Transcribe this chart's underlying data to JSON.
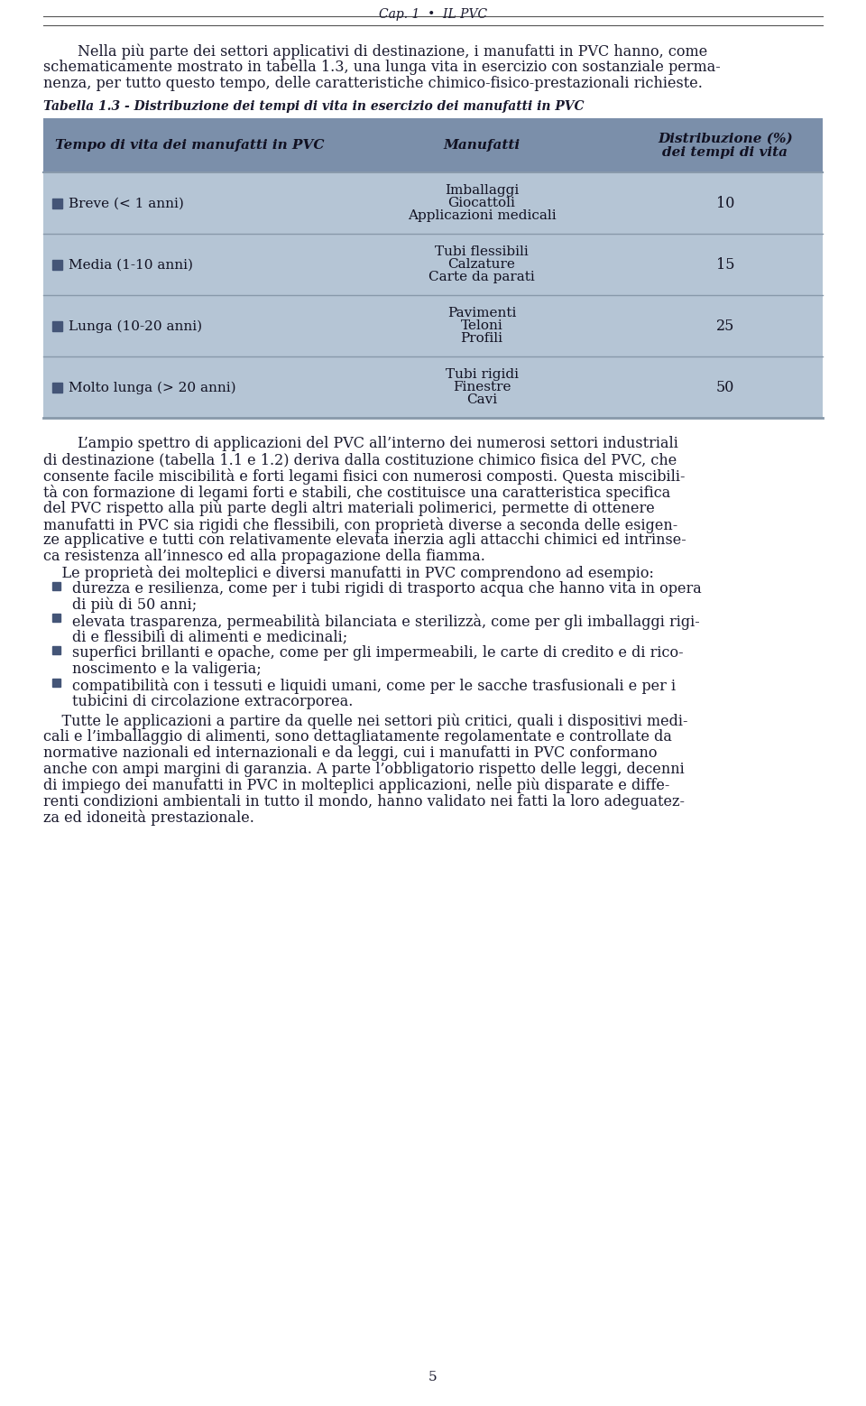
{
  "page_bg": "#ffffff",
  "header_text": "Cap. 1  •  IL PVC",
  "para1_lines": [
    "Nella più parte dei settori applicativi di destinazione, i manufatti in PVC hanno, come",
    "schematicamente mostrato in tabella 1.3, una lunga vita in esercizio con sostanziale perma-",
    "nenza, per tutto questo tempo, delle caratteristiche chimico-fisico-prestazionali richieste."
  ],
  "table_title": "Tabella 1.3 - Distribuzione dei tempi di vita in esercizio dei manufatti in PVC",
  "table_header_bg": "#7b8faa",
  "table_row_bg": "#b5c5d5",
  "table_border_color": "#8899aa",
  "col1_header": "Tempo di vita dei manufatti in PVC",
  "col2_header": "Manufatti",
  "col3_header_line1": "Distribuzione (%)",
  "col3_header_line2": "dei tempi di vita",
  "rows": [
    {
      "col1": "Breve (< 1 anni)",
      "col2_lines": [
        "Imballaggi",
        "Giocattoli",
        "Applicazioni medicali"
      ],
      "col3": "10",
      "sq_color": "#445577"
    },
    {
      "col1": "Media (1-10 anni)",
      "col2_lines": [
        "Tubi flessibili",
        "Calzature",
        "Carte da parati"
      ],
      "col3": "15",
      "sq_color": "#445577"
    },
    {
      "col1": "Lunga (10-20 anni)",
      "col2_lines": [
        "Pavimenti",
        "Teloni",
        "Profili"
      ],
      "col3": "25",
      "sq_color": "#445577"
    },
    {
      "col1": "Molto lunga (> 20 anni)",
      "col2_lines": [
        "Tubi rigidi",
        "Finestre",
        "Cavi"
      ],
      "col3": "50",
      "sq_color": "#445577"
    }
  ],
  "para2_lines": [
    "L’ampio spettro di applicazioni del PVC all’interno dei numerosi settori industriali",
    "di destinazione (tabella 1.1 e 1.2) deriva dalla costituzione chimico fisica del PVC, che",
    "consente facile miscibilità e forti legami fisici con numerosi composti. Questa miscibili-",
    "tà con formazione di legami forti e stabili, che costituisce una caratteristica specifica",
    "del PVC rispetto alla più parte degli altri materiali polimerici, permette di ottenere",
    "manufatti in PVC sia rigidi che flessibili, con proprietà diverse a seconda delle esigen-",
    "ze applicative e tutti con relativamente elevata inerzia agli attacchi chimici ed intrinse-",
    "ca resistenza all’innesco ed alla propagazione della fiamma."
  ],
  "para3_intro": "    Le proprietà dei molteplici e diversi manufatti in PVC comprendono ad esempio:",
  "bullet_color": "#445577",
  "bullet_lines": [
    [
      "durezza e resilienza, come per i tubi rigidi di trasporto acqua che hanno vita in opera",
      "di più di 50 anni;"
    ],
    [
      "elevata trasparenza, permeabilità bilanciata e sterilizzà, come per gli imballaggi rigi-",
      "di e flessibili di alimenti e medicinali;"
    ],
    [
      "superfici brillanti e opache, come per gli impermeabili, le carte di credito e di rico-",
      "noscimento e la valigeria;"
    ],
    [
      "compatibilità con i tessuti e liquidi umani, come per le sacche trasfusionali e per i",
      "tubicini di circolazione extracorporea."
    ]
  ],
  "para4_lines": [
    "    Tutte le applicazioni a partire da quelle nei settori più critici, quali i dispositivi medi-",
    "cali e l’imballaggio di alimenti, sono dettagliatamente regolamentate e controllate da",
    "normative nazionali ed internazionali e da leggi, cui i manufatti in PVC conformano",
    "anche con ampi margini di garanzia. A parte l’obbligatorio rispetto delle leggi, decenni",
    "di impiego dei manufatti in PVC in molteplici applicazioni, nelle più disparate e diffe-",
    "renti condizioni ambientali in tutto il mondo, hanno validato nei fatti la loro adeguatez-",
    "za ed idoneità prestazionale."
  ],
  "footer_text": "5",
  "text_color": "#1a1a2e",
  "body_fontsize": 11.5,
  "table_fontsize": 11.0,
  "header_fontsize": 10.0
}
